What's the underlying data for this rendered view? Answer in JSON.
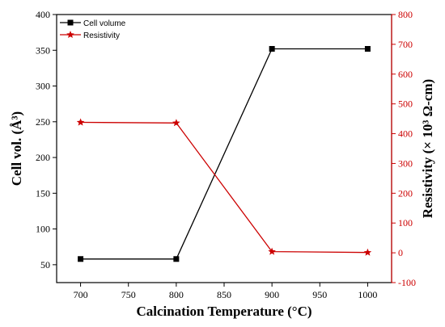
{
  "chart_data": {
    "type": "line",
    "x": [
      700,
      800,
      900,
      1000
    ],
    "xlabel": "Calcination Temperature (°C)",
    "xticks": [
      "700",
      "750",
      "800",
      "850",
      "900",
      "950",
      "1000"
    ],
    "xlim": [
      675,
      1025
    ],
    "y_left": {
      "label": "Cell vol. (Å³)",
      "lim": [
        25,
        400
      ],
      "ticks": [
        "50",
        "100",
        "150",
        "200",
        "250",
        "300",
        "350",
        "400"
      ],
      "color": "#000000"
    },
    "y_right": {
      "label": "Resistivity (× 10³ Ω-cm)",
      "lim": [
        -100,
        800
      ],
      "ticks": [
        "-100",
        "0",
        "100",
        "200",
        "300",
        "400",
        "500",
        "600",
        "700",
        "800"
      ],
      "color": "#cc0000"
    },
    "series": [
      {
        "name": "Cell volume",
        "axis": "left",
        "values": [
          58,
          58,
          352,
          352
        ],
        "color": "#000000",
        "marker": "square"
      },
      {
        "name": "Resistivity",
        "axis": "right",
        "values": [
          438,
          436,
          4,
          1
        ],
        "color": "#cc0000",
        "marker": "star"
      }
    ],
    "legend": "top-left",
    "grid": false
  }
}
